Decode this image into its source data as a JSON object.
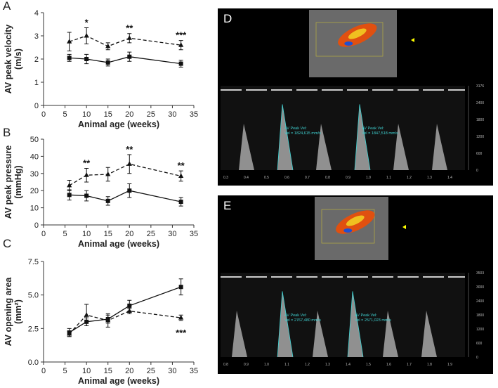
{
  "chart_data": [
    {
      "type": "line",
      "panel": "A",
      "xlabel": "Animal age (weeks)",
      "ylabel": [
        "AV peak velocity",
        "(m/s)"
      ],
      "x": [
        6,
        10,
        15,
        20,
        32
      ],
      "xlim": [
        0,
        35
      ],
      "xticks": [
        0,
        5,
        10,
        15,
        20,
        25,
        30,
        35
      ],
      "ylim": [
        0,
        4
      ],
      "yticks": [
        0,
        1,
        2,
        3,
        4
      ],
      "series": [
        {
          "color": "#111",
          "style": "solid",
          "marker": "square",
          "values": [
            2.05,
            2.0,
            1.85,
            2.1,
            1.8
          ],
          "errors": [
            0.15,
            0.2,
            0.15,
            0.2,
            0.15
          ]
        },
        {
          "color": "#111",
          "style": "dashed",
          "marker": "triangle",
          "values": [
            2.75,
            3.0,
            2.55,
            2.9,
            2.6
          ],
          "errors": [
            0.4,
            0.35,
            0.15,
            0.2,
            0.2
          ]
        }
      ],
      "annotations": [
        {
          "x": 10,
          "text": "*"
        },
        {
          "x": 20,
          "text": "**"
        },
        {
          "x": 32,
          "text": "***"
        }
      ]
    },
    {
      "type": "line",
      "panel": "B",
      "xlabel": "Animal age (weeks)",
      "ylabel": [
        "AV peak pressure",
        "(mmHg)"
      ],
      "x": [
        6,
        10,
        15,
        20,
        32
      ],
      "xlim": [
        0,
        35
      ],
      "xticks": [
        0,
        5,
        10,
        15,
        20,
        25,
        30,
        35
      ],
      "ylim": [
        0,
        50
      ],
      "yticks": [
        0,
        10,
        20,
        30,
        40,
        50
      ],
      "series": [
        {
          "color": "#111",
          "style": "solid",
          "marker": "square",
          "values": [
            17.5,
            17,
            14,
            20,
            13.5
          ],
          "errors": [
            3,
            3,
            2.5,
            4,
            2.5
          ]
        },
        {
          "color": "#111",
          "style": "dashed",
          "marker": "triangle",
          "values": [
            23,
            29,
            29.5,
            35.5,
            28.5
          ],
          "errors": [
            3,
            4,
            4,
            5.5,
            3
          ]
        }
      ],
      "annotations": [
        {
          "x": 10,
          "text": "**"
        },
        {
          "x": 20,
          "text": "**"
        },
        {
          "x": 32,
          "text": "**"
        }
      ]
    },
    {
      "type": "line",
      "panel": "C",
      "xlabel": "Animal age (weeks)",
      "ylabel": [
        "AV opening area",
        "(mm²)"
      ],
      "x": [
        6,
        10,
        15,
        20,
        32
      ],
      "xlim": [
        0,
        35
      ],
      "xticks": [
        0,
        5,
        10,
        15,
        20,
        25,
        30,
        35
      ],
      "ylim": [
        0,
        7.5
      ],
      "yticks": [
        {
          "value": 0,
          "label": "0.0"
        },
        {
          "value": 2.5,
          "label": "2.5"
        },
        {
          "value": 5,
          "label": "5.0"
        },
        {
          "value": 7.5,
          "label": "7.5"
        }
      ],
      "series": [
        {
          "color": "#111",
          "style": "solid",
          "marker": "square",
          "values": [
            2.2,
            3.0,
            3.2,
            4.2,
            5.6
          ],
          "errors": [
            0.3,
            0.3,
            0.3,
            0.4,
            0.6
          ]
        },
        {
          "color": "#111",
          "style": "dashed",
          "marker": "triangle",
          "values": [
            2.1,
            3.5,
            3.1,
            3.8,
            3.3
          ],
          "errors": [
            0.2,
            0.8,
            0.5,
            0.2,
            0.2
          ]
        }
      ],
      "annotations": [
        {
          "x": 32,
          "text": "***",
          "placement": "below"
        }
      ]
    }
  ],
  "panels": [
    {
      "label": "D",
      "readings": [
        "AV Peak Vel:",
        "Vel = 1824,615 mm/s",
        "AV Peak Vel:",
        "Vel = 1847,518 mm/s"
      ],
      "time_labels": [
        "0.3",
        "0.4",
        "0.5",
        "0.6",
        "0.7",
        "0.8",
        "0.9",
        "1.0",
        "1.1",
        "1.2",
        "1.3",
        "1.4"
      ],
      "velocity_labels": [
        "3176",
        "2400",
        "1800",
        "1200",
        "600",
        "0"
      ]
    },
    {
      "label": "E",
      "readings": [
        "AV Peak Vel:",
        "Vel = 2767,480 mm/s",
        "AV Peak Vel:",
        "Vel = 2571,023 mm/s"
      ],
      "time_labels": [
        "0.8",
        "0.9",
        "1.0",
        "1.1",
        "1.2",
        "1.3",
        "1.4",
        "1.5",
        "1.6",
        "1.7",
        "1.8",
        "1.9"
      ],
      "velocity_labels": [
        "3503",
        "3000",
        "2400",
        "1800",
        "1200",
        "600",
        "0"
      ]
    }
  ]
}
